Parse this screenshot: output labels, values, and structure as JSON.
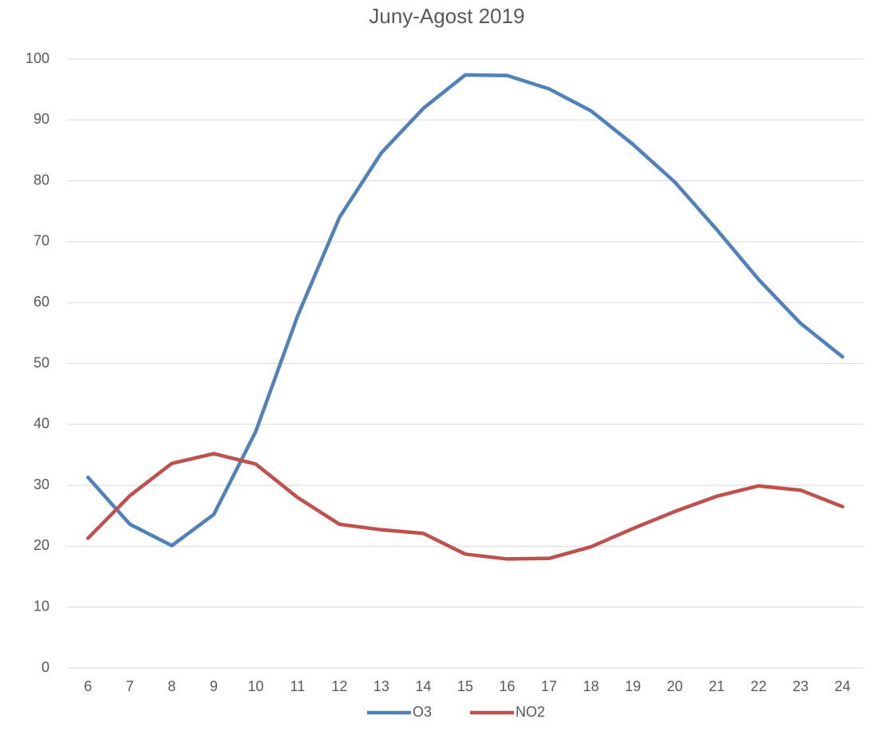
{
  "chart_data": {
    "type": "line",
    "title": "Juny-Agost 2019",
    "categories": [
      "6",
      "7",
      "8",
      "9",
      "10",
      "11",
      "12",
      "13",
      "14",
      "15",
      "16",
      "17",
      "18",
      "19",
      "20",
      "21",
      "22",
      "23",
      "24"
    ],
    "series": [
      {
        "name": "O3",
        "color": "#4f81bd",
        "values": [
          31.3,
          23.6,
          20.1,
          25.2,
          38.8,
          57.8,
          74.0,
          84.6,
          91.9,
          97.4,
          97.3,
          95.1,
          91.5,
          86.0,
          79.8,
          72.0,
          63.8,
          56.6,
          51.1
        ]
      },
      {
        "name": "NO2",
        "color": "#c0504d",
        "values": [
          21.3,
          28.3,
          33.6,
          35.2,
          33.5,
          28.0,
          23.6,
          22.7,
          22.1,
          18.7,
          17.9,
          18.0,
          19.9,
          22.9,
          25.7,
          28.2,
          29.9,
          29.2,
          26.5
        ]
      }
    ],
    "ylim": [
      0,
      100
    ],
    "yticks": [
      0,
      10,
      20,
      30,
      40,
      50,
      60,
      70,
      80,
      90,
      100
    ],
    "grid": true,
    "legend": "bottom"
  }
}
